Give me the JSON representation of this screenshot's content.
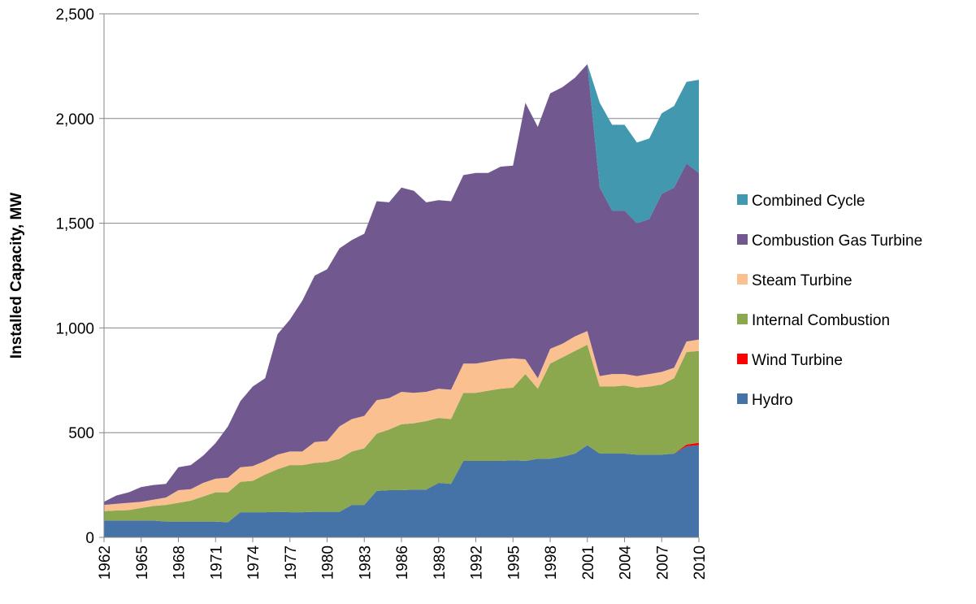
{
  "chart_data": {
    "type": "stacked_area",
    "y_label": "Installed Capacity, MW",
    "x": [
      1962,
      1963,
      1964,
      1965,
      1966,
      1967,
      1968,
      1969,
      1970,
      1971,
      1972,
      1973,
      1974,
      1975,
      1976,
      1977,
      1978,
      1979,
      1980,
      1981,
      1982,
      1983,
      1984,
      1985,
      1986,
      1987,
      1988,
      1989,
      1990,
      1991,
      1992,
      1993,
      1994,
      1995,
      1996,
      1997,
      1998,
      1999,
      2000,
      2001,
      2002,
      2003,
      2004,
      2005,
      2006,
      2007,
      2008,
      2009,
      2010
    ],
    "xlim": [
      1962,
      2010
    ],
    "xticks": [
      1962,
      1965,
      1968,
      1971,
      1974,
      1977,
      1980,
      1983,
      1986,
      1989,
      1992,
      1995,
      1998,
      2001,
      2004,
      2007,
      2010
    ],
    "ylim": [
      0,
      2500
    ],
    "yticks": [
      0,
      {
        "value": 500,
        "label": "500"
      },
      {
        "value": 1000,
        "label": "1,000"
      },
      {
        "value": 1500,
        "label": "1,500"
      },
      {
        "value": 2000,
        "label": "2,000"
      },
      {
        "value": 2500,
        "label": "2,500"
      }
    ],
    "grid": true,
    "legend": "right",
    "series": [
      {
        "name": "Hydro",
        "color": "#4572a7",
        "values": [
          80,
          80,
          80,
          80,
          80,
          75,
          75,
          75,
          75,
          75,
          72,
          120,
          120,
          120,
          122,
          120,
          120,
          122,
          122,
          122,
          155,
          155,
          222,
          225,
          225,
          228,
          228,
          260,
          255,
          365,
          365,
          365,
          365,
          368,
          365,
          375,
          375,
          385,
          400,
          440,
          400,
          400,
          400,
          395,
          395,
          395,
          400,
          435,
          440
        ]
      },
      {
        "name": "Wind Turbine",
        "color": "#ff0000",
        "values": [
          0,
          0,
          0,
          0,
          0,
          0,
          0,
          0,
          0,
          0,
          0,
          0,
          0,
          0,
          0,
          0,
          0,
          0,
          0,
          0,
          0,
          0,
          0,
          0,
          0,
          0,
          0,
          0,
          0,
          0,
          0,
          0,
          0,
          0,
          0,
          0,
          0,
          0,
          0,
          0,
          0,
          0,
          0,
          0,
          0,
          0,
          0,
          8,
          12
        ]
      },
      {
        "name": "Internal Combustion",
        "color": "#8ba84f",
        "values": [
          45,
          48,
          50,
          60,
          70,
          80,
          90,
          100,
          120,
          140,
          143,
          145,
          150,
          180,
          203,
          225,
          225,
          233,
          238,
          253,
          255,
          270,
          273,
          290,
          315,
          317,
          327,
          310,
          310,
          325,
          325,
          335,
          345,
          347,
          415,
          335,
          455,
          475,
          490,
          480,
          320,
          320,
          325,
          320,
          325,
          335,
          360,
          442,
          438
        ]
      },
      {
        "name": "Steam Turbine",
        "color": "#fac090",
        "values": [
          30,
          32,
          35,
          30,
          30,
          35,
          60,
          55,
          65,
          65,
          70,
          70,
          70,
          65,
          70,
          65,
          65,
          100,
          100,
          155,
          155,
          155,
          160,
          150,
          155,
          145,
          140,
          140,
          140,
          140,
          140,
          140,
          140,
          140,
          70,
          50,
          70,
          65,
          70,
          65,
          50,
          60,
          55,
          55,
          60,
          60,
          50,
          50,
          55
        ]
      },
      {
        "name": "Combustion Gas Turbine",
        "color": "#71588f",
        "values": [
          15,
          40,
          50,
          70,
          70,
          65,
          110,
          115,
          130,
          170,
          245,
          315,
          380,
          395,
          575,
          630,
          720,
          795,
          820,
          850,
          855,
          870,
          950,
          935,
          975,
          965,
          905,
          900,
          900,
          900,
          910,
          900,
          920,
          920,
          1225,
          1200,
          1220,
          1225,
          1235,
          1275,
          900,
          780,
          780,
          730,
          740,
          850,
          860,
          850,
          795
        ]
      },
      {
        "name": "Combined Cycle",
        "color": "#4198af",
        "values": [
          0,
          0,
          0,
          0,
          0,
          0,
          0,
          0,
          0,
          0,
          0,
          0,
          0,
          0,
          0,
          0,
          0,
          0,
          0,
          0,
          0,
          0,
          0,
          0,
          0,
          0,
          0,
          0,
          0,
          0,
          0,
          0,
          0,
          0,
          0,
          0,
          0,
          0,
          0,
          0,
          405,
          410,
          410,
          385,
          385,
          385,
          390,
          390,
          445
        ]
      }
    ]
  }
}
